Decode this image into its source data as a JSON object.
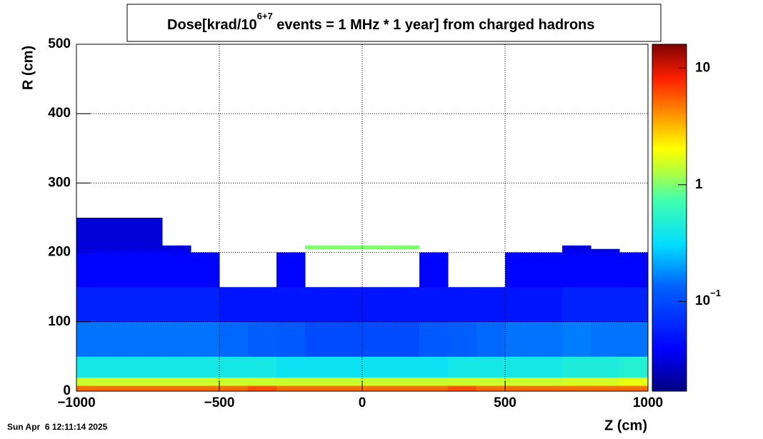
{
  "chart_data": {
    "type": "heatmap",
    "title": {
      "text_before": "Dose[krad/10",
      "superscript": "6+7",
      "text_after": " events = 1 MHz * 1 year] from charged hadrons"
    },
    "x_label": "Z (cm)",
    "y_label": "R (cm)",
    "timestamp": "Sun Apr  6 12:11:14 2025",
    "xbins": [
      -1000,
      -900,
      -800,
      -700,
      -600,
      -500,
      -400,
      -300,
      -200,
      -100,
      0,
      100,
      200,
      300,
      400,
      500,
      600,
      700,
      800,
      900,
      1000
    ],
    "ybins": [
      0,
      8,
      20,
      50,
      100,
      150,
      200,
      205,
      210,
      250
    ],
    "values": [
      [
        5,
        5,
        5,
        5,
        5,
        5,
        6,
        5,
        5,
        5,
        5,
        5,
        5,
        6,
        5,
        5,
        5,
        5,
        5,
        5
      ],
      [
        1.5,
        1.5,
        1.5,
        1.5,
        1.5,
        1.5,
        1.5,
        1.5,
        1.5,
        1.5,
        1.5,
        1.5,
        1.5,
        1.5,
        1.5,
        1.5,
        1.5,
        1.6,
        1.6,
        1.8
      ],
      [
        0.4,
        0.4,
        0.4,
        0.4,
        0.4,
        0.4,
        0.4,
        0.35,
        0.35,
        0.35,
        0.35,
        0.35,
        0.35,
        0.4,
        0.4,
        0.4,
        0.4,
        0.45,
        0.45,
        0.5
      ],
      [
        0.15,
        0.15,
        0.15,
        0.15,
        0.15,
        0.14,
        0.13,
        0.12,
        0.1,
        0.1,
        0.1,
        0.1,
        0.12,
        0.13,
        0.14,
        0.15,
        0.15,
        0.16,
        0.15,
        0.15
      ],
      [
        0.06,
        0.06,
        0.06,
        0.06,
        0.06,
        0.05,
        0.05,
        0.05,
        0.05,
        0.05,
        0.05,
        0.05,
        0.05,
        0.05,
        0.05,
        0.05,
        0.05,
        0.06,
        0.06,
        0.06
      ],
      [
        0.04,
        0.04,
        0.04,
        0.04,
        0.04,
        null,
        null,
        0.04,
        null,
        null,
        null,
        null,
        0.04,
        null,
        null,
        0.04,
        0.04,
        0.04,
        0.04,
        0.04
      ],
      [
        0.035,
        0.035,
        0.035,
        0.035,
        null,
        null,
        null,
        null,
        null,
        null,
        null,
        null,
        null,
        null,
        null,
        null,
        null,
        0.035,
        0.035,
        null
      ],
      [
        0.03,
        0.03,
        0.03,
        0.03,
        null,
        null,
        null,
        null,
        1,
        1,
        1,
        1,
        null,
        null,
        null,
        null,
        null,
        0.03,
        null,
        null
      ],
      [
        0.03,
        0.03,
        0.03,
        null,
        null,
        null,
        null,
        null,
        null,
        null,
        null,
        null,
        null,
        null,
        null,
        null,
        null,
        null,
        null,
        null
      ]
    ],
    "xlim": [
      -1000,
      1000
    ],
    "ylim": [
      0,
      500
    ],
    "xticks": [
      {
        "value": -1000,
        "label": "−1000"
      },
      {
        "value": -500,
        "label": "−500"
      },
      0,
      500,
      1000
    ],
    "yticks": [
      0,
      100,
      200,
      300,
      400,
      500
    ],
    "zlim": [
      0.017,
      16
    ],
    "zscale": "log",
    "zticks": [
      {
        "value": 0.1,
        "label": "10",
        "exponent": "−1"
      },
      1,
      10
    ],
    "grid": true
  }
}
